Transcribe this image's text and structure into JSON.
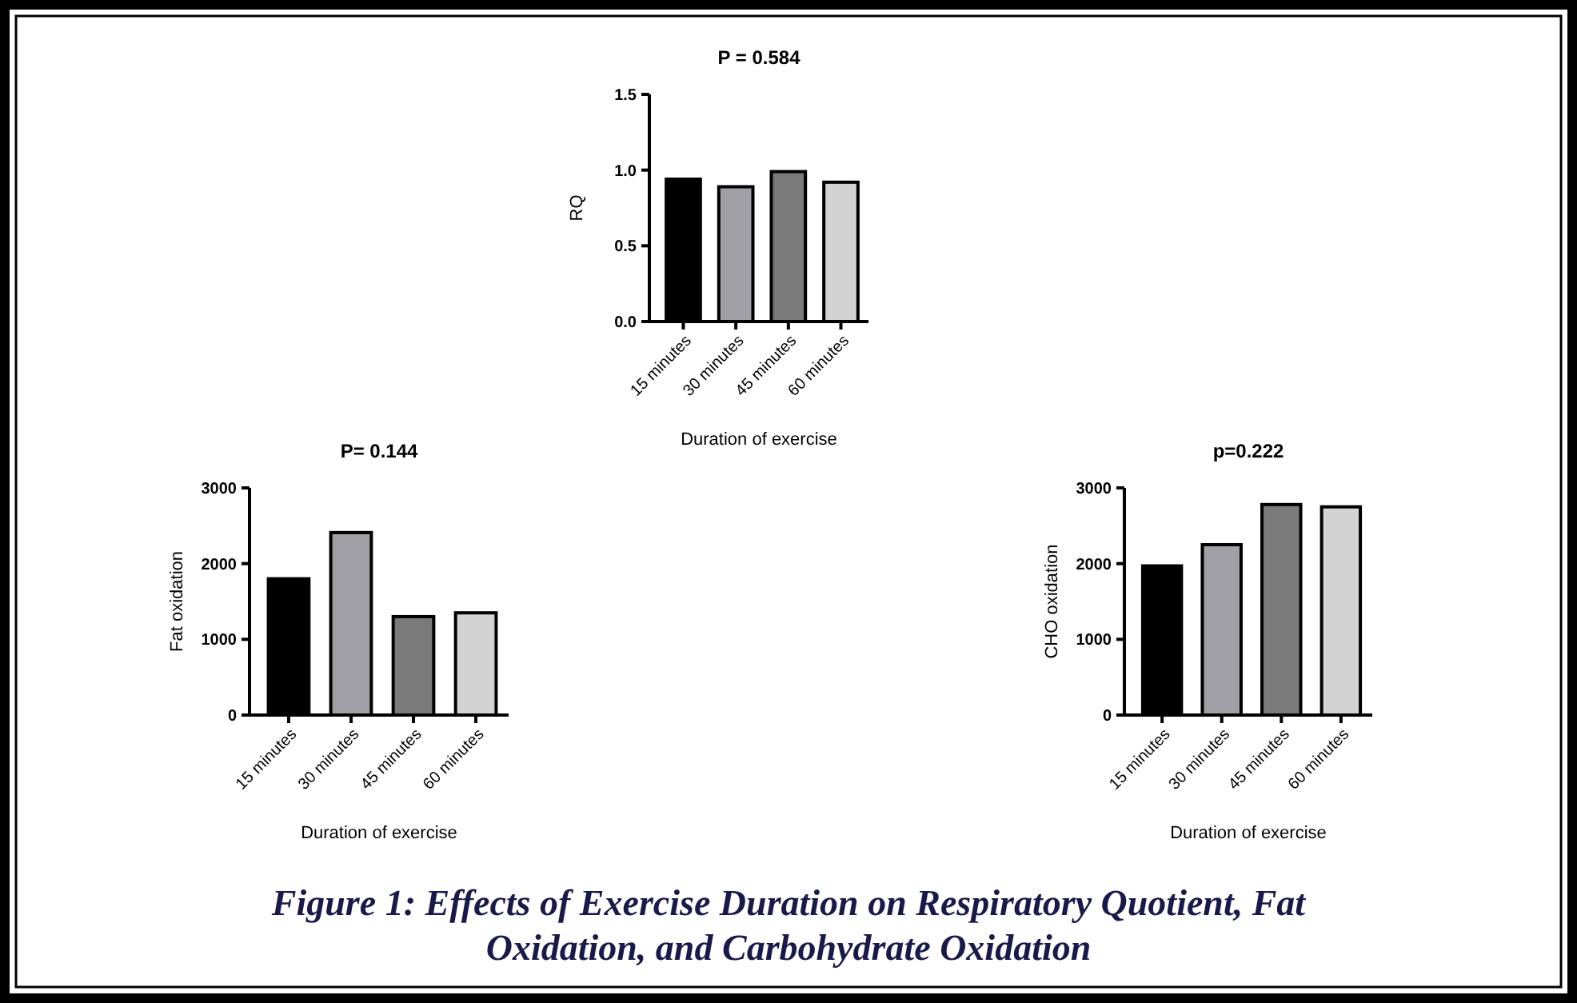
{
  "chart_data": [
    {
      "type": "bar",
      "title": "P = 0.584",
      "xlabel": "Duration of exercise",
      "ylabel": "RQ",
      "categories": [
        "15 minutes",
        "30 minutes",
        "45 minutes",
        "60 minutes"
      ],
      "values": [
        0.94,
        0.89,
        0.99,
        0.92
      ],
      "colors": [
        "#000000",
        "#a0a0a6",
        "#7a7a7a",
        "#d3d3d3"
      ],
      "ylim": [
        0,
        1.5
      ],
      "yticks": [
        {
          "value": 0,
          "label": "0.0"
        },
        0.5,
        {
          "value": 1,
          "label": "1.0"
        },
        1.5
      ]
    },
    {
      "type": "bar",
      "title": "P= 0.144",
      "xlabel": "Duration of exercise",
      "ylabel": "Fat oxidation",
      "categories": [
        "15 minutes",
        "30 minutes",
        "45 minutes",
        "60 minutes"
      ],
      "values": [
        1800,
        2410,
        1300,
        1350
      ],
      "colors": [
        "#000000",
        "#a0a0a6",
        "#7a7a7a",
        "#d3d3d3"
      ],
      "ylim": [
        0,
        3000
      ],
      "yticks": [
        0,
        1000,
        2000,
        3000
      ]
    },
    {
      "type": "bar",
      "title": "p=0.222",
      "xlabel": "Duration of exercise",
      "ylabel": "CHO oxidation",
      "categories": [
        "15 minutes",
        "30 minutes",
        "45 minutes",
        "60 minutes"
      ],
      "values": [
        1970,
        2250,
        2780,
        2750
      ],
      "colors": [
        "#000000",
        "#a0a0a6",
        "#7a7a7a",
        "#d3d3d3"
      ],
      "ylim": [
        0,
        3000
      ],
      "yticks": [
        0,
        1000,
        2000,
        3000
      ],
      "annotations": [
        "Figure 1: Effects of Exercise Duration on Respiratory Quotient, Fat",
        "Oxidation, and Carbohydrate Oxidation"
      ]
    }
  ]
}
